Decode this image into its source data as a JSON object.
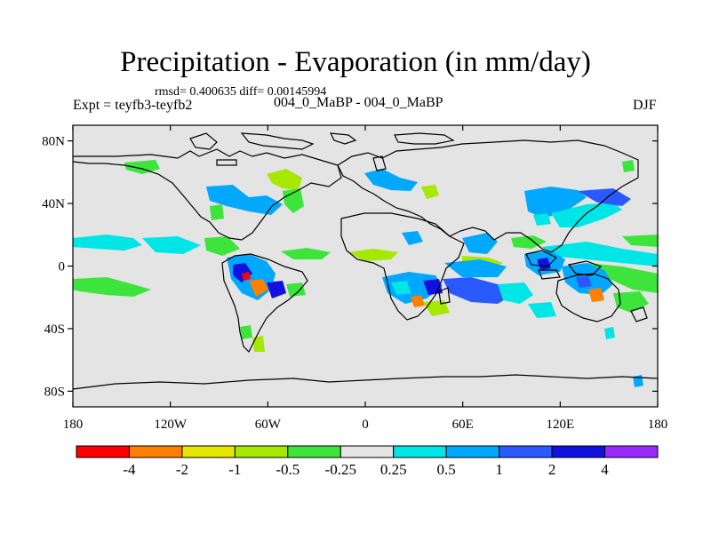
{
  "title": "Precipitation - Evaporation (in mm/day)",
  "stats": "rmsd= 0.400635  diff= 0.00145994",
  "left_label": "Expt = teyfb3-teyfb2",
  "subtitle": "004_0_MaBP - 004_0_MaBP",
  "season": "DJF",
  "map": {
    "lon_range": [
      -180,
      180
    ],
    "lat_range": [
      -90,
      90
    ],
    "lat_ticks": [
      {
        "value": 80,
        "label": "80N"
      },
      {
        "value": 40,
        "label": "40N"
      },
      {
        "value": 0,
        "label": "0"
      },
      {
        "value": -40,
        "label": "40S"
      },
      {
        "value": -80,
        "label": "80S"
      }
    ],
    "lon_ticks": [
      {
        "value": -180,
        "label": "180"
      },
      {
        "value": -120,
        "label": "120W"
      },
      {
        "value": -60,
        "label": "60W"
      },
      {
        "value": 0,
        "label": "0"
      },
      {
        "value": 60,
        "label": "60E"
      },
      {
        "value": 120,
        "label": "120E"
      },
      {
        "value": 180,
        "label": "180"
      }
    ],
    "background_color": "#e4e4e4"
  },
  "colorbar": {
    "colors": [
      "#ff0000",
      "#ff7f00",
      "#e6e600",
      "#a6e800",
      "#3ce43c",
      "#e4e4e4",
      "#00e5e5",
      "#00a8ff",
      "#2a5aff",
      "#1010e0",
      "#9a28ff"
    ],
    "labels": [
      "-4",
      "-2",
      "-1",
      "-0.5",
      "-0.25",
      "0.25",
      "0.5",
      "1",
      "2",
      "4"
    ]
  }
}
